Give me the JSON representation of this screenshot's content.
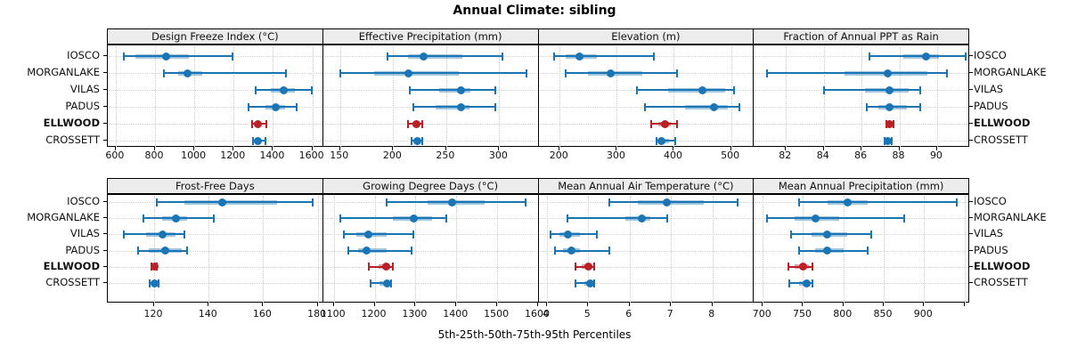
{
  "figure": {
    "title": "Annual Climate: sibling",
    "caption": "5th-25th-50th-75th-95th Percentiles"
  },
  "colors": {
    "series_blue": "#1b75b4",
    "highlight_red": "#bb2026",
    "strip_bg": "#ececec",
    "grid_gray": "#c9c9c9",
    "frame_black": "#000000"
  },
  "sites": [
    "IOSCO",
    "MORGANLAKE",
    "VILAS",
    "PADUS",
    "ELLWOOD",
    "CROSSETT"
  ],
  "highlight_site": "ELLWOOD",
  "chart_data": {
    "type": "scatter",
    "variant": "trellis-percentile-whisker-dotplot",
    "title": "Annual Climate: sibling",
    "xlabel": "5th-25th-50th-75th-95th Percentiles",
    "percentiles": [
      5,
      25,
      50,
      75,
      95
    ],
    "layout": {
      "rows": 2,
      "cols": 4
    },
    "grid": "dotted-at-ticks",
    "legend": "none",
    "sites": [
      "IOSCO",
      "MORGANLAKE",
      "VILAS",
      "PADUS",
      "ELLWOOD",
      "CROSSETT"
    ],
    "highlight_site": "ELLWOOD",
    "panels": [
      {
        "title": "Design Freeze Index (°C)",
        "xlim": [
          560,
          1655
        ],
        "ticks": [
          {
            "v": 600,
            "label": "600"
          },
          {
            "v": 800,
            "label": "800"
          },
          {
            "v": 1000,
            "label": "1000"
          },
          {
            "v": 1200,
            "label": "1200"
          },
          {
            "v": 1400,
            "label": "1400"
          },
          {
            "v": 1600,
            "label": "1600"
          }
        ],
        "series": [
          {
            "site": "IOSCO",
            "p": [
              640,
              700,
              855,
              970,
              1195
            ]
          },
          {
            "site": "MORGANLAKE",
            "p": [
              845,
              920,
              965,
              1040,
              1465
            ]
          },
          {
            "site": "VILAS",
            "p": [
              1310,
              1390,
              1455,
              1510,
              1595
            ]
          },
          {
            "site": "PADUS",
            "p": [
              1275,
              1360,
              1415,
              1460,
              1520
            ]
          },
          {
            "site": "ELLWOOD",
            "p": [
              1295,
              1310,
              1325,
              1340,
              1365
            ]
          },
          {
            "site": "CROSSETT",
            "p": [
              1300,
              1312,
              1322,
              1332,
              1360
            ]
          }
        ]
      },
      {
        "title": "Effective Precipitation (mm)",
        "xlim": [
          134,
          337
        ],
        "ticks": [
          {
            "v": 150,
            "label": "150"
          },
          {
            "v": 200,
            "label": "200"
          },
          {
            "v": 250,
            "label": "250"
          },
          {
            "v": 300,
            "label": "300"
          }
        ],
        "series": [
          {
            "site": "IOSCO",
            "p": [
              195,
              214,
              229,
              265,
              303
            ]
          },
          {
            "site": "MORGANLAKE",
            "p": [
              150,
              182,
              214,
              262,
              326
            ]
          },
          {
            "site": "VILAS",
            "p": [
              216,
              243,
              264,
              273,
              296
            ]
          },
          {
            "site": "PADUS",
            "p": [
              219,
              240,
              264,
              272,
              296
            ]
          },
          {
            "site": "ELLWOOD",
            "p": [
              214,
              218,
              222,
              225,
              227
            ]
          },
          {
            "site": "CROSSETT",
            "p": [
              217,
              220,
              223,
              225,
              227
            ]
          }
        ]
      },
      {
        "title": "Elevation (m)",
        "xlim": [
          163,
          540
        ],
        "ticks": [
          {
            "v": 200,
            "label": "200"
          },
          {
            "v": 300,
            "label": "300"
          },
          {
            "v": 400,
            "label": "400"
          },
          {
            "v": 500,
            "label": "500"
          }
        ],
        "series": [
          {
            "site": "IOSCO",
            "p": [
              190,
              210,
              235,
              265,
              365
            ]
          },
          {
            "site": "MORGANLAKE",
            "p": [
              210,
              250,
              290,
              345,
              405
            ]
          },
          {
            "site": "VILAS",
            "p": [
              335,
              390,
              450,
              490,
              505
            ]
          },
          {
            "site": "PADUS",
            "p": [
              350,
              420,
              470,
              495,
              515
            ]
          },
          {
            "site": "ELLWOOD",
            "p": [
              360,
              372,
              384,
              395,
              405
            ]
          },
          {
            "site": "CROSSETT",
            "p": [
              370,
              374,
              378,
              392,
              402
            ]
          }
        ]
      },
      {
        "title": "Fraction of Annual PPT as Rain",
        "xlim": [
          80.3,
          91.7
        ],
        "ticks": [
          {
            "v": 82,
            "label": "82"
          },
          {
            "v": 84,
            "label": "84"
          },
          {
            "v": 86,
            "label": "86"
          },
          {
            "v": 88,
            "label": "88"
          },
          {
            "v": 90,
            "label": "90"
          }
        ],
        "series": [
          {
            "site": "IOSCO",
            "p": [
              86.4,
              88.2,
              89.4,
              90.1,
              91.5
            ]
          },
          {
            "site": "MORGANLAKE",
            "p": [
              81.0,
              85.1,
              87.4,
              89.5,
              90.5
            ]
          },
          {
            "site": "VILAS",
            "p": [
              84.0,
              86.2,
              87.5,
              88.5,
              89.1
            ]
          },
          {
            "site": "PADUS",
            "p": [
              86.3,
              86.9,
              87.5,
              88.4,
              89.1
            ]
          },
          {
            "site": "ELLWOOD",
            "p": [
              87.3,
              87.4,
              87.5,
              87.6,
              87.7
            ]
          },
          {
            "site": "CROSSETT",
            "p": [
              87.2,
              87.3,
              87.4,
              87.5,
              87.6
            ]
          }
        ]
      },
      {
        "title": "Frost-Free Days",
        "xlim": [
          103,
          182
        ],
        "ticks": [
          {
            "v": 120,
            "label": "120"
          },
          {
            "v": 140,
            "label": "140"
          },
          {
            "v": 160,
            "label": "160"
          },
          {
            "v": 180,
            "label": "180"
          }
        ],
        "series": [
          {
            "site": "IOSCO",
            "p": [
              121,
              131,
              145,
              165,
              178
            ]
          },
          {
            "site": "MORGANLAKE",
            "p": [
              116,
              123,
              128,
              132,
              142
            ]
          },
          {
            "site": "VILAS",
            "p": [
              109,
              117,
              123,
              128,
              131
            ]
          },
          {
            "site": "PADUS",
            "p": [
              114,
              118,
              124,
              130,
              132
            ]
          },
          {
            "site": "ELLWOOD",
            "p": [
              119,
              119.5,
              120,
              120.5,
              121
            ]
          },
          {
            "site": "CROSSETT",
            "p": [
              118.5,
              119.5,
              120,
              120.5,
              121.5
            ]
          }
        ]
      },
      {
        "title": "Growing Degree Days (°C)",
        "xlim": [
          1074,
          1601
        ],
        "ticks": [
          {
            "v": 1100,
            "label": "1100"
          },
          {
            "v": 1200,
            "label": "1200"
          },
          {
            "v": 1300,
            "label": "1300"
          },
          {
            "v": 1400,
            "label": "1400"
          },
          {
            "v": 1500,
            "label": "1500"
          },
          {
            "v": 1600,
            "label": "1600"
          }
        ],
        "series": [
          {
            "site": "IOSCO",
            "p": [
              1230,
              1330,
              1390,
              1470,
              1570
            ]
          },
          {
            "site": "MORGANLAKE",
            "p": [
              1115,
              1245,
              1295,
              1340,
              1375
            ]
          },
          {
            "site": "VILAS",
            "p": [
              1125,
              1155,
              1185,
              1230,
              1295
            ]
          },
          {
            "site": "PADUS",
            "p": [
              1135,
              1160,
              1180,
              1230,
              1290
            ]
          },
          {
            "site": "ELLWOOD",
            "p": [
              1185,
              1210,
              1228,
              1238,
              1245
            ]
          },
          {
            "site": "CROSSETT",
            "p": [
              1190,
              1212,
              1230,
              1236,
              1240
            ]
          }
        ]
      },
      {
        "title": "Mean Annual Air Temperature (°C)",
        "xlim": [
          3.8,
          9.0
        ],
        "ticks": [
          {
            "v": 4,
            "label": "4"
          },
          {
            "v": 5,
            "label": "5"
          },
          {
            "v": 6,
            "label": "6"
          },
          {
            "v": 7,
            "label": "7"
          },
          {
            "v": 8,
            "label": "8"
          }
        ],
        "series": [
          {
            "site": "IOSCO",
            "p": [
              5.5,
              6.2,
              6.9,
              7.8,
              8.6
            ]
          },
          {
            "site": "MORGANLAKE",
            "p": [
              4.5,
              5.9,
              6.3,
              6.5,
              6.9
            ]
          },
          {
            "site": "VILAS",
            "p": [
              4.1,
              4.3,
              4.5,
              4.8,
              5.2
            ]
          },
          {
            "site": "PADUS",
            "p": [
              4.2,
              4.4,
              4.6,
              4.8,
              5.5
            ]
          },
          {
            "site": "ELLWOOD",
            "p": [
              4.7,
              4.85,
              5.0,
              5.1,
              5.15
            ]
          },
          {
            "site": "CROSSETT",
            "p": [
              4.7,
              4.9,
              5.05,
              5.1,
              5.15
            ]
          }
        ]
      },
      {
        "title": "Mean Annual Precipitation (mm)",
        "xlim": [
          689,
          956
        ],
        "ticks": [
          {
            "v": 700,
            "label": "700"
          },
          {
            "v": 750,
            "label": "750"
          },
          {
            "v": 800,
            "label": "800"
          },
          {
            "v": 850,
            "label": "850"
          },
          {
            "v": 900,
            "label": "900"
          },
          {
            "v": 950,
            "label": ""
          }
        ],
        "series": [
          {
            "site": "IOSCO",
            "p": [
              745,
              780,
              805,
              830,
              940
            ]
          },
          {
            "site": "MORGANLAKE",
            "p": [
              705,
              740,
              765,
              795,
              875
            ]
          },
          {
            "site": "VILAS",
            "p": [
              735,
              760,
              780,
              805,
              835
            ]
          },
          {
            "site": "PADUS",
            "p": [
              745,
              765,
              780,
              800,
              830
            ]
          },
          {
            "site": "ELLWOOD",
            "p": [
              732,
              740,
              750,
              757,
              762
            ]
          },
          {
            "site": "CROSSETT",
            "p": [
              733,
              745,
              754,
              758,
              762
            ]
          }
        ]
      }
    ]
  }
}
